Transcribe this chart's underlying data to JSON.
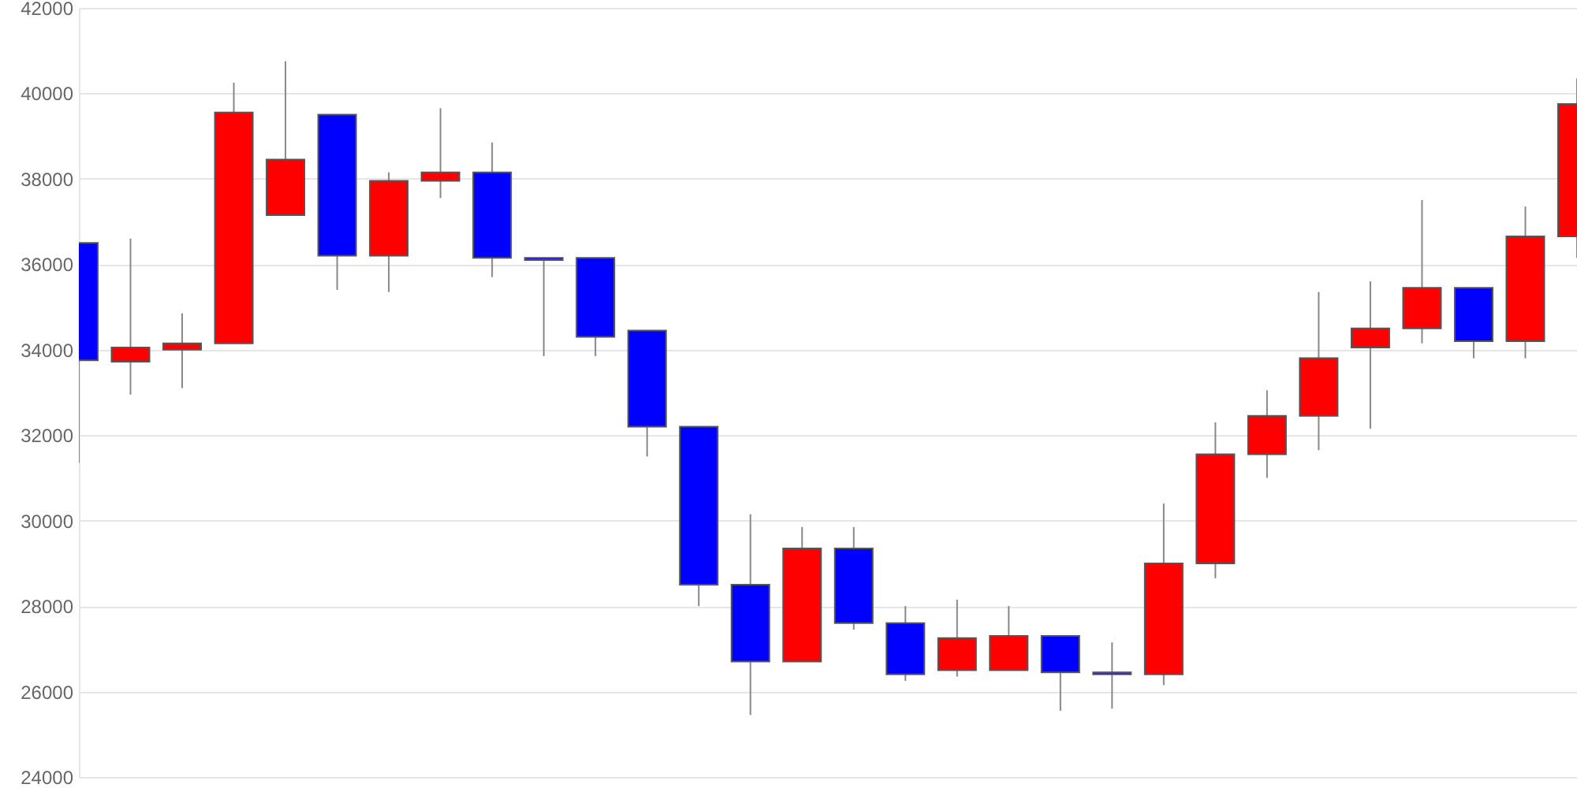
{
  "chart_data": {
    "type": "candlestick",
    "categories": [
      null,
      null,
      null,
      null,
      null,
      null,
      null,
      null,
      null,
      null,
      null,
      null,
      null,
      null,
      null,
      null,
      null,
      null,
      null,
      null,
      null,
      null,
      null,
      null,
      null,
      null,
      null,
      null,
      null,
      null
    ],
    "ohlc": [
      [
        36500,
        36500,
        31350,
        33750
      ],
      [
        33720,
        36600,
        32950,
        34050
      ],
      [
        34000,
        34850,
        33100,
        34150
      ],
      [
        34150,
        40250,
        34150,
        39550
      ],
      [
        37150,
        40750,
        37150,
        38450
      ],
      [
        39500,
        39500,
        35400,
        36200
      ],
      [
        36200,
        38150,
        35350,
        37950
      ],
      [
        37950,
        39650,
        37550,
        38150
      ],
      [
        38150,
        38850,
        35700,
        36150
      ],
      [
        36150,
        36150,
        33850,
        36100
      ],
      [
        36150,
        36150,
        33850,
        34300
      ],
      [
        34450,
        34450,
        31500,
        32200
      ],
      [
        32200,
        32200,
        28000,
        28500
      ],
      [
        28500,
        30150,
        25450,
        26700
      ],
      [
        26700,
        29850,
        26700,
        29350
      ],
      [
        29350,
        29850,
        27450,
        27600
      ],
      [
        27600,
        28000,
        26250,
        26400
      ],
      [
        26500,
        28150,
        26350,
        27250
      ],
      [
        26500,
        28000,
        26500,
        27300
      ],
      [
        27300,
        27300,
        25550,
        26450
      ],
      [
        26450,
        27150,
        25600,
        26400
      ],
      [
        26400,
        30400,
        26150,
        29000
      ],
      [
        29000,
        32300,
        28650,
        31550
      ],
      [
        31550,
        33050,
        31000,
        32450
      ],
      [
        32450,
        35350,
        31650,
        33800
      ],
      [
        34050,
        35600,
        32150,
        34500
      ],
      [
        34500,
        37500,
        34150,
        35450
      ],
      [
        35450,
        35450,
        33800,
        34200
      ],
      [
        34200,
        37350,
        33800,
        36650
      ],
      [
        36650,
        40350,
        36150,
        39750
      ]
    ],
    "colors": [
      "#0000ff",
      "#ff0000",
      "#ff0000",
      "#ff0000",
      "#ff0000",
      "#0000ff",
      "#ff0000",
      "#ff0000",
      "#0000ff",
      "#0000ff",
      "#0000ff",
      "#0000ff",
      "#0000ff",
      "#0000ff",
      "#ff0000",
      "#0000ff",
      "#0000ff",
      "#ff0000",
      "#ff0000",
      "#0000ff",
      "#0000ff",
      "#ff0000",
      "#ff0000",
      "#ff0000",
      "#ff0000",
      "#ff0000",
      "#ff0000",
      "#0000ff",
      "#ff0000",
      "#ff0000"
    ],
    "ylim": [
      24000,
      42000
    ],
    "yticks": [
      24000,
      26000,
      28000,
      30000,
      32000,
      34000,
      36000,
      38000,
      40000,
      42000
    ],
    "grid": "y",
    "tick_labels": "y"
  }
}
